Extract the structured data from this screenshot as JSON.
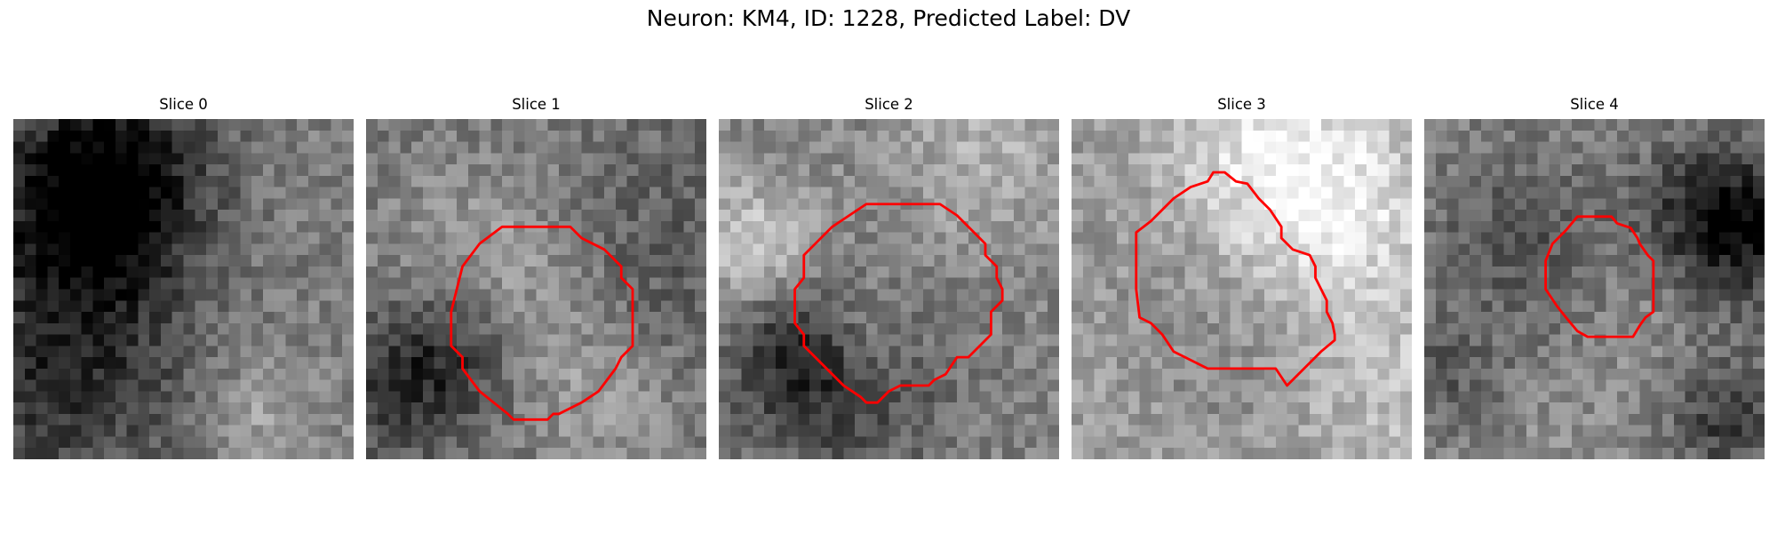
{
  "figure": {
    "suptitle": "Neuron: KM4, ID: 1228, Predicted Label: DV"
  },
  "panels": [
    {
      "title": "Slice 0",
      "has_contour": false
    },
    {
      "title": "Slice 1",
      "has_contour": true
    },
    {
      "title": "Slice 2",
      "has_contour": true
    },
    {
      "title": "Slice 3",
      "has_contour": true
    },
    {
      "title": "Slice 4",
      "has_contour": true
    }
  ],
  "style": {
    "contour_color": "#ff0000",
    "colormap": "gray"
  }
}
